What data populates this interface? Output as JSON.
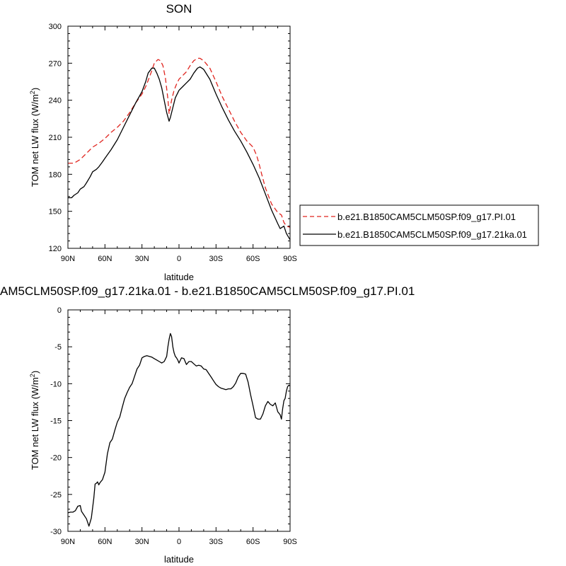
{
  "chart_data": [
    {
      "type": "line",
      "title": "SON",
      "xlabel": "latitude",
      "ylabel": "TOM net LW flux (W/m",
      "ylabel_sup": "2",
      "ylabel_close": ")",
      "xlim": [
        -90,
        90
      ],
      "ylim": [
        120,
        300
      ],
      "x_ticks": [
        -90,
        -60,
        -30,
        0,
        30,
        60,
        90
      ],
      "x_tick_labels": [
        "90N",
        "60N",
        "30N",
        "0",
        "30S",
        "60S",
        "90S"
      ],
      "y_ticks": [
        120,
        150,
        180,
        210,
        240,
        270,
        300
      ],
      "y_tick_labels": [
        "120",
        "150",
        "180",
        "210",
        "240",
        "270",
        "300"
      ],
      "grid": false,
      "legend_placement": "outside-right",
      "series": [
        {
          "name": "b.e21.B1850CAM5CLM50SP.f09_g17.PI.01",
          "color": "#e0251f",
          "dash": "dashed",
          "x": [
            -90,
            -85,
            -80,
            -75,
            -70,
            -65,
            -60,
            -55,
            -50,
            -45,
            -40,
            -35,
            -30,
            -27,
            -25,
            -22,
            -20,
            -17,
            -15,
            -13,
            -11,
            -9,
            -8,
            -6,
            -4,
            -2,
            0,
            3,
            6,
            9,
            12,
            15,
            17,
            20,
            25,
            30,
            35,
            40,
            45,
            50,
            55,
            60,
            63,
            65,
            67,
            70,
            75,
            80,
            83,
            85,
            87,
            90
          ],
          "y": [
            189,
            189,
            192,
            197,
            202,
            205,
            209,
            214,
            218,
            223,
            230,
            238,
            245,
            251,
            256,
            264,
            270,
            273,
            272,
            268,
            258,
            241,
            229,
            240,
            248,
            253,
            257,
            260,
            263,
            268,
            272,
            274,
            274,
            272,
            266,
            255,
            243,
            233,
            223,
            214,
            207,
            202,
            195,
            188,
            180,
            169,
            156,
            149,
            147,
            141,
            138,
            137
          ]
        },
        {
          "name": "b.e21.B1850CAM5CLM50SP.f09_g17.21ka.01",
          "color": "#000000",
          "dash": "solid",
          "x": [
            -90,
            -87,
            -85,
            -82,
            -80,
            -77,
            -75,
            -72,
            -70,
            -67,
            -65,
            -62,
            -60,
            -55,
            -50,
            -45,
            -40,
            -35,
            -30,
            -27,
            -25,
            -22,
            -20,
            -18,
            -16,
            -14,
            -12,
            -10,
            -8,
            -7,
            -5,
            -3,
            0,
            3,
            6,
            9,
            12,
            15,
            17,
            20,
            25,
            30,
            35,
            40,
            45,
            50,
            55,
            60,
            65,
            70,
            75,
            80,
            82,
            85,
            87,
            90
          ],
          "y": [
            161,
            161,
            163,
            165,
            168,
            170,
            173,
            178,
            182,
            184,
            186,
            190,
            193,
            200,
            208,
            218,
            228,
            238,
            247,
            255,
            262,
            266,
            266,
            262,
            257,
            250,
            240,
            230,
            223,
            226,
            234,
            242,
            248,
            251,
            254,
            257,
            262,
            266,
            267,
            265,
            257,
            245,
            234,
            224,
            215,
            207,
            198,
            188,
            177,
            164,
            151,
            140,
            136,
            138,
            132,
            127
          ]
        }
      ]
    },
    {
      "type": "line",
      "title": "AM5CLM50SP.f09_g17.21ka.01 - b.e21.B1850CAM5CLM50SP.f09_g17.PI.01",
      "xlabel": "latitude",
      "ylabel": "TOM net LW flux (W/m",
      "ylabel_sup": "2",
      "ylabel_close": ")",
      "xlim": [
        -90,
        90
      ],
      "ylim": [
        -30,
        0
      ],
      "x_ticks": [
        -90,
        -60,
        -30,
        0,
        30,
        60,
        90
      ],
      "x_tick_labels": [
        "90N",
        "60N",
        "30N",
        "0",
        "30S",
        "60S",
        "90S"
      ],
      "y_ticks": [
        -30,
        -25,
        -20,
        -15,
        -10,
        -5,
        0
      ],
      "y_tick_labels": [
        "-30",
        "-25",
        "-20",
        "-15",
        "-10",
        "-5",
        "0"
      ],
      "grid": false,
      "series": [
        {
          "color": "#000000",
          "dash": "solid",
          "x": [
            -90,
            -88,
            -86,
            -84,
            -82,
            -80,
            -79,
            -77,
            -75,
            -73,
            -71,
            -69,
            -68,
            -67,
            -66,
            -65,
            -64,
            -62,
            -60,
            -58,
            -56,
            -54,
            -52,
            -50,
            -48,
            -46,
            -44,
            -42,
            -40,
            -38,
            -36,
            -34,
            -32,
            -30,
            -28,
            -26,
            -24,
            -22,
            -20,
            -18,
            -16,
            -14,
            -12,
            -10,
            -9,
            -8,
            -7,
            -6,
            -5,
            -4,
            -3,
            -2,
            -1,
            0,
            2,
            4,
            6,
            8,
            10,
            12,
            14,
            16,
            18,
            20,
            22,
            24,
            26,
            28,
            30,
            32,
            34,
            36,
            38,
            40,
            42,
            44,
            46,
            48,
            50,
            52,
            54,
            56,
            58,
            60,
            62,
            64,
            66,
            68,
            70,
            72,
            74,
            76,
            78,
            80,
            82,
            83,
            84,
            85,
            86,
            87,
            88,
            89,
            90
          ],
          "y": [
            -27.5,
            -27.4,
            -27.4,
            -27.2,
            -26.6,
            -26.5,
            -27.3,
            -27.8,
            -28.3,
            -29.3,
            -28.2,
            -25.5,
            -23.6,
            -23.5,
            -23.3,
            -23.7,
            -23.4,
            -23.0,
            -22.0,
            -19.5,
            -18.0,
            -17.5,
            -16.3,
            -15.2,
            -14.5,
            -13.2,
            -12.0,
            -11.2,
            -10.5,
            -10.0,
            -9.0,
            -8.0,
            -7.5,
            -6.5,
            -6.3,
            -6.2,
            -6.3,
            -6.4,
            -6.6,
            -6.8,
            -7.0,
            -7.2,
            -7.0,
            -6.3,
            -5.0,
            -4.0,
            -3.2,
            -3.6,
            -5.0,
            -5.8,
            -6.3,
            -6.5,
            -6.8,
            -7.2,
            -6.5,
            -6.6,
            -7.4,
            -7.0,
            -7.0,
            -7.3,
            -7.6,
            -7.5,
            -7.6,
            -8.0,
            -8.1,
            -8.6,
            -9.1,
            -9.6,
            -10.1,
            -10.4,
            -10.6,
            -10.7,
            -10.8,
            -10.7,
            -10.7,
            -10.4,
            -9.9,
            -9.1,
            -8.6,
            -8.6,
            -8.7,
            -9.8,
            -11.5,
            -13.0,
            -14.6,
            -14.8,
            -14.8,
            -14.1,
            -13.0,
            -12.4,
            -12.8,
            -13.0,
            -12.6,
            -13.8,
            -14.2,
            -14.8,
            -13.4,
            -12.3,
            -12.0,
            -11.0,
            -10.4,
            -10.2,
            -10.3
          ]
        }
      ]
    }
  ]
}
